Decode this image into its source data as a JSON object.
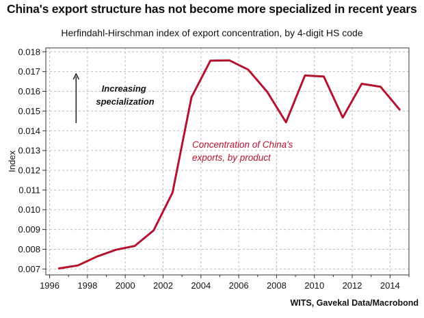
{
  "title": "China's export structure has not become more specialized in recent years",
  "subtitle": "Herfindahl-Hirschman index of export concentration, by 4-digit HS code",
  "source": "WITS, Gavekal Data/Macrobond",
  "colors": {
    "series": "#b5122e",
    "grid": "#bdbdbd",
    "frame": "#333333"
  },
  "chart_data": {
    "type": "line",
    "title": "China's export structure has not become more specialized in recent years",
    "subtitle": "Herfindahl-Hirschman index of export concentration, by 4-digit HS code",
    "xlabel": "",
    "ylabel": "Index",
    "xlim": [
      1995.8,
      2015
    ],
    "ylim": [
      0.0067,
      0.0182
    ],
    "xticks": [
      1996,
      1998,
      2000,
      2002,
      2004,
      2006,
      2008,
      2010,
      2012,
      2014
    ],
    "yticks": [
      0.007,
      0.008,
      0.009,
      0.01,
      0.011,
      0.012,
      0.013,
      0.014,
      0.015,
      0.016,
      0.017,
      0.018
    ],
    "ytick_labels": [
      "0.007",
      "0.008",
      "0.009",
      "0.010",
      "0.011",
      "0.012",
      "0.013",
      "0.014",
      "0.015",
      "0.016",
      "0.017",
      "0.018"
    ],
    "grid": true,
    "series": [
      {
        "name": "Concentration of China's exports, by product",
        "x": [
          1996.5,
          1997.5,
          1998.5,
          1999.5,
          2000.5,
          2001.5,
          2002.5,
          2003.5,
          2004.5,
          2005.5,
          2006.5,
          2007.5,
          2008.5,
          2009.5,
          2010.5,
          2011.5,
          2012.5,
          2013.5,
          2014.5
        ],
        "y": [
          0.00703,
          0.00718,
          0.00763,
          0.00797,
          0.00817,
          0.00895,
          0.01087,
          0.0157,
          0.01755,
          0.01757,
          0.0171,
          0.01598,
          0.01443,
          0.0168,
          0.01675,
          0.01467,
          0.01638,
          0.01623,
          0.01508
        ]
      }
    ],
    "annotations": [
      {
        "text_lines": [
          "Concentration of China's",
          "exports, by product"
        ]
      },
      {
        "text_lines": [
          "Increasing",
          "specialization"
        ],
        "arrow": "up"
      }
    ]
  }
}
